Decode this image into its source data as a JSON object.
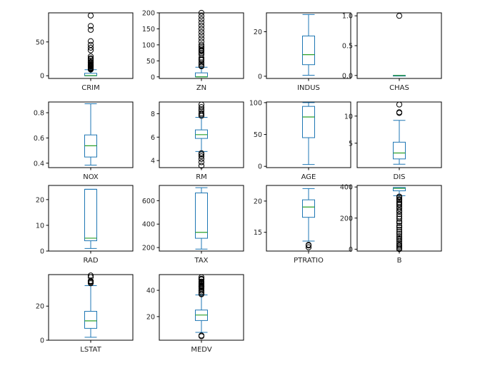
{
  "chart_data": [
    {
      "type": "box",
      "category": "CRIM",
      "ylim": [
        -4,
        93
      ],
      "yticks": [
        0,
        50
      ],
      "box": {
        "whislo": 0.01,
        "q1": 0.08,
        "med": 0.26,
        "q3": 3.68,
        "whishi": 8.98
      },
      "fliers": [
        9.2,
        10.1,
        11.1,
        12.0,
        13.5,
        14.3,
        15.0,
        15.9,
        16.8,
        18.5,
        19.6,
        20.1,
        22.0,
        24.4,
        25.9,
        28.7,
        37.7,
        41.5,
        45.7,
        51.1,
        67.9,
        73.5,
        89.0
      ]
    },
    {
      "type": "box",
      "category": "ZN",
      "ylim": [
        -5,
        200
      ],
      "yticks": [
        0,
        50,
        100,
        150,
        200
      ],
      "box": {
        "whislo": 0,
        "q1": 0,
        "med": 0,
        "q3": 12.5,
        "whishi": 30
      },
      "fliers": [
        33,
        35,
        40,
        45,
        52.5,
        55,
        60,
        70,
        75,
        80,
        82.5,
        85,
        90,
        95,
        100,
        110,
        120,
        130,
        140,
        150,
        160,
        170,
        180,
        190,
        200
      ]
    },
    {
      "type": "box",
      "category": "INDUS",
      "ylim": [
        -1,
        28.5
      ],
      "yticks": [
        0,
        20
      ],
      "box": {
        "whislo": 0.46,
        "q1": 5.19,
        "med": 9.69,
        "q3": 18.1,
        "whishi": 27.74
      },
      "fliers": []
    },
    {
      "type": "box",
      "category": "CHAS",
      "ylim": [
        -0.05,
        1.05
      ],
      "yticks": [
        0.0,
        0.5,
        1.0
      ],
      "box": {
        "whislo": 0,
        "q1": 0,
        "med": 0,
        "q3": 0,
        "whishi": 0
      },
      "fliers": [
        1.0
      ]
    },
    {
      "type": "box",
      "category": "NOX",
      "ylim": [
        0.365,
        0.885
      ],
      "yticks": [
        0.4,
        0.6,
        0.8
      ],
      "box": {
        "whislo": 0.385,
        "q1": 0.449,
        "med": 0.538,
        "q3": 0.624,
        "whishi": 0.871
      },
      "fliers": []
    },
    {
      "type": "box",
      "category": "RM",
      "ylim": [
        3.4,
        9.0
      ],
      "yticks": [
        4,
        6,
        8
      ],
      "box": {
        "whislo": 4.78,
        "q1": 5.89,
        "med": 6.21,
        "q3": 6.62,
        "whishi": 7.69
      },
      "fliers": [
        3.56,
        3.86,
        4.14,
        4.37,
        4.52,
        4.63,
        7.82,
        7.93,
        8.04,
        8.25,
        8.38,
        8.56,
        8.78
      ]
    },
    {
      "type": "box",
      "category": "AGE",
      "ylim": [
        -2,
        101
      ],
      "yticks": [
        0,
        50,
        100
      ],
      "box": {
        "whislo": 2.9,
        "q1": 45.0,
        "med": 77.5,
        "q3": 94.1,
        "whishi": 100
      },
      "fliers": []
    },
    {
      "type": "box",
      "category": "DIS",
      "ylim": [
        0.5,
        12.6
      ],
      "yticks": [
        5,
        10
      ],
      "box": {
        "whislo": 1.13,
        "q1": 2.1,
        "med": 3.2,
        "q3": 5.19,
        "whishi": 9.22
      },
      "fliers": [
        10.58,
        10.71,
        12.13
      ]
    },
    {
      "type": "box",
      "category": "RAD",
      "ylim": [
        0,
        25.5
      ],
      "yticks": [
        0,
        10,
        20
      ],
      "box": {
        "whislo": 1,
        "q1": 4,
        "med": 5,
        "q3": 24,
        "whishi": 24
      },
      "fliers": []
    },
    {
      "type": "box",
      "category": "TAX",
      "ylim": [
        170,
        730
      ],
      "yticks": [
        200,
        400,
        600
      ],
      "box": {
        "whislo": 187,
        "q1": 279,
        "med": 330,
        "q3": 666,
        "whishi": 711
      },
      "fliers": []
    },
    {
      "type": "box",
      "category": "PTRATIO",
      "ylim": [
        12,
        22.5
      ],
      "yticks": [
        15,
        20
      ],
      "box": {
        "whislo": 13.6,
        "q1": 17.4,
        "med": 19.05,
        "q3": 20.2,
        "whishi": 22
      },
      "fliers": [
        12.6,
        12.9,
        13.0
      ]
    },
    {
      "type": "box",
      "category": "B",
      "ylim": [
        -12,
        410
      ],
      "yticks": [
        0,
        200,
        400
      ],
      "box": {
        "whislo": 344,
        "q1": 375.4,
        "med": 391.4,
        "q3": 396.2,
        "whishi": 396.9
      },
      "fliers": [
        0.3,
        7.7,
        16.5,
        24.6,
        35.0,
        48.5,
        60.7,
        70.8,
        83.5,
        97.9,
        109.9,
        125.0,
        140.0,
        151.0,
        169.3,
        178.6,
        196.0,
        210.0,
        225.5,
        240.2,
        248.3,
        261.9,
        272.2,
        285.0,
        294.0,
        302.8,
        316.0,
        321.0,
        331.3,
        338.6
      ]
    },
    {
      "type": "box",
      "category": "LSTAT",
      "ylim": [
        0,
        38.5
      ],
      "yticks": [
        0,
        20
      ],
      "box": {
        "whislo": 1.73,
        "q1": 6.95,
        "med": 11.36,
        "q3": 16.96,
        "whishi": 31.99
      },
      "fliers": [
        33.4,
        34.0,
        34.4,
        34.8,
        36.98,
        37.97
      ]
    },
    {
      "type": "box",
      "category": "MEDV",
      "ylim": [
        2,
        52
      ],
      "yticks": [
        20,
        40
      ],
      "box": {
        "whislo": 8.0,
        "q1": 17.0,
        "med": 21.2,
        "q3": 25.0,
        "whishi": 36.5
      },
      "fliers": [
        5.0,
        5.6,
        37.0,
        37.6,
        38.7,
        39.8,
        41.3,
        42.3,
        42.8,
        43.1,
        43.5,
        44.0,
        44.8,
        45.4,
        46.0,
        46.7,
        48.3,
        48.5,
        48.8,
        50.0
      ]
    }
  ],
  "colors": {
    "box": "#1f77b4",
    "median": "#2ca02c",
    "flier": "#000000",
    "axes": "#000000"
  }
}
